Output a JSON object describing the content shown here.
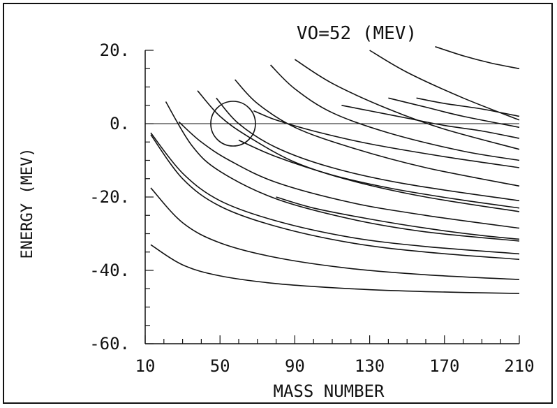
{
  "chart_data": {
    "type": "line",
    "title": "VO=52 (MEV)",
    "xlabel": "MASS NUMBER",
    "ylabel": "ENERGY (MEV)",
    "xlim": [
      10,
      210
    ],
    "ylim": [
      -60,
      20
    ],
    "xticks": [
      10,
      50,
      90,
      130,
      170,
      210
    ],
    "xtick_labels": [
      "10",
      "50",
      "90",
      "130",
      "170",
      "210"
    ],
    "yticks": [
      20,
      0,
      -20,
      -40,
      -60
    ],
    "ytick_labels": [
      "20.",
      "0.",
      "-20.",
      "-40.",
      "-60."
    ],
    "grid": false,
    "reference_line_y": 0,
    "annotation_circle": {
      "x": 57,
      "y": 0
    },
    "series": [
      {
        "x": [
          13,
          30,
          50,
          80,
          120,
          160,
          210
        ],
        "y": [
          -33,
          -38.5,
          -41.5,
          -43.6,
          -45,
          -45.8,
          -46.3
        ]
      },
      {
        "x": [
          13,
          30,
          50,
          80,
          120,
          160,
          210
        ],
        "y": [
          -17.5,
          -27,
          -32.5,
          -36.5,
          -39.5,
          -41.2,
          -42.5
        ]
      },
      {
        "x": [
          13,
          30,
          50,
          80,
          120,
          160,
          210
        ],
        "y": [
          -3,
          -15,
          -22.5,
          -28,
          -32.5,
          -35,
          -37
        ]
      },
      {
        "x": [
          13,
          30,
          50,
          80,
          120,
          160,
          210
        ],
        "y": [
          -2.5,
          -13.5,
          -21,
          -26.5,
          -31,
          -33.5,
          -35.5
        ]
      },
      {
        "x": [
          21,
          35,
          50,
          80,
          120,
          160,
          210
        ],
        "y": [
          6,
          -6,
          -13,
          -20.5,
          -26,
          -29.5,
          -32
        ]
      },
      {
        "x": [
          28,
          40,
          55,
          80,
          120,
          160,
          210
        ],
        "y": [
          0.5,
          -5,
          -10,
          -16,
          -21.5,
          -25,
          -28.5
        ]
      },
      {
        "x": [
          38,
          50,
          65,
          90,
          120,
          160,
          210
        ],
        "y": [
          9,
          2,
          -3.5,
          -10.5,
          -15.5,
          -20,
          -24
        ]
      },
      {
        "x": [
          48,
          60,
          80,
          110,
          150,
          210
        ],
        "y": [
          7,
          0,
          -6.5,
          -12,
          -16.5,
          -21
        ]
      },
      {
        "x": [
          58,
          70,
          90,
          120,
          160,
          210
        ],
        "y": [
          12,
          5.5,
          -1,
          -6.5,
          -12,
          -17
        ]
      },
      {
        "x": [
          68,
          80,
          100,
          130,
          170,
          210
        ],
        "y": [
          3.5,
          1,
          -2,
          -5.5,
          -9,
          -12
        ]
      },
      {
        "x": [
          77,
          90,
          110,
          140,
          180,
          210
        ],
        "y": [
          16,
          9.5,
          3,
          -2.5,
          -7.5,
          -10
        ]
      },
      {
        "x": [
          90,
          110,
          140,
          170,
          210
        ],
        "y": [
          17.5,
          11,
          4,
          -1.5,
          -7
        ]
      },
      {
        "x": [
          115,
          130,
          150,
          170,
          190,
          210
        ],
        "y": [
          5,
          3.5,
          1.5,
          -0.5,
          -2,
          -4
        ]
      },
      {
        "x": [
          130,
          150,
          180,
          210
        ],
        "y": [
          20,
          14,
          7,
          1
        ]
      },
      {
        "x": [
          140,
          160,
          180,
          210
        ],
        "y": [
          7,
          4.5,
          2,
          -1
        ]
      },
      {
        "x": [
          155,
          170,
          190,
          210
        ],
        "y": [
          7,
          5.5,
          4,
          2
        ]
      },
      {
        "x": [
          165,
          180,
          195,
          210
        ],
        "y": [
          21,
          18.5,
          16.5,
          15
        ]
      },
      {
        "x": [
          80,
          100,
          130,
          160,
          190,
          210
        ],
        "y": [
          -20,
          -23,
          -26,
          -28.5,
          -30.5,
          -31.5
        ]
      },
      {
        "x": [
          60,
          80,
          110,
          140,
          175,
          210
        ],
        "y": [
          -4.5,
          -9,
          -14,
          -17.5,
          -20.5,
          -23
        ]
      }
    ]
  }
}
